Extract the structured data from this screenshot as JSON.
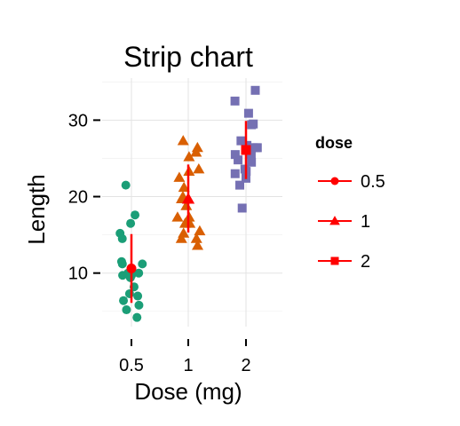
{
  "chart_data": {
    "type": "scatter",
    "title": "Strip chart",
    "xlabel": "Dose (mg)",
    "ylabel": "Length",
    "categories": [
      "0.5",
      "1",
      "2"
    ],
    "yticks": [
      10,
      20,
      30
    ],
    "ylim": [
      3,
      35.5
    ],
    "grid": true,
    "legend": {
      "title": "dose",
      "position": "right",
      "entries": [
        "0.5",
        "1",
        "2"
      ]
    },
    "series": [
      {
        "name": "0.5",
        "color": "#1b9e77",
        "shape": "circle",
        "values": [
          4.2,
          11.5,
          7.3,
          5.8,
          6.4,
          10.0,
          11.2,
          11.2,
          5.2,
          7.0,
          15.2,
          21.5,
          17.6,
          9.7,
          14.5,
          10.0,
          8.2,
          9.4,
          16.5,
          9.7
        ],
        "summary": {
          "mean": 10.6,
          "low": 6.1,
          "high": 15.1
        }
      },
      {
        "name": "1",
        "color": "#d95f02",
        "shape": "triangle",
        "values": [
          16.5,
          16.5,
          15.2,
          17.3,
          22.5,
          17.3,
          13.6,
          14.5,
          18.8,
          15.5,
          19.7,
          23.3,
          23.6,
          26.4,
          20.0,
          25.2,
          25.8,
          21.2,
          14.5,
          27.3
        ],
        "summary": {
          "mean": 19.7,
          "low": 15.3,
          "high": 24.2
        }
      },
      {
        "name": "2",
        "color": "#7570b3",
        "shape": "square",
        "values": [
          23.6,
          18.5,
          33.9,
          25.5,
          26.4,
          32.5,
          26.7,
          21.5,
          23.3,
          29.5,
          25.5,
          26.4,
          22.4,
          24.5,
          24.8,
          30.9,
          26.4,
          27.3,
          29.4,
          23.0
        ],
        "summary": {
          "mean": 26.1,
          "low": 22.3,
          "high": 29.9
        }
      }
    ],
    "summary_color": "#ff0000"
  }
}
